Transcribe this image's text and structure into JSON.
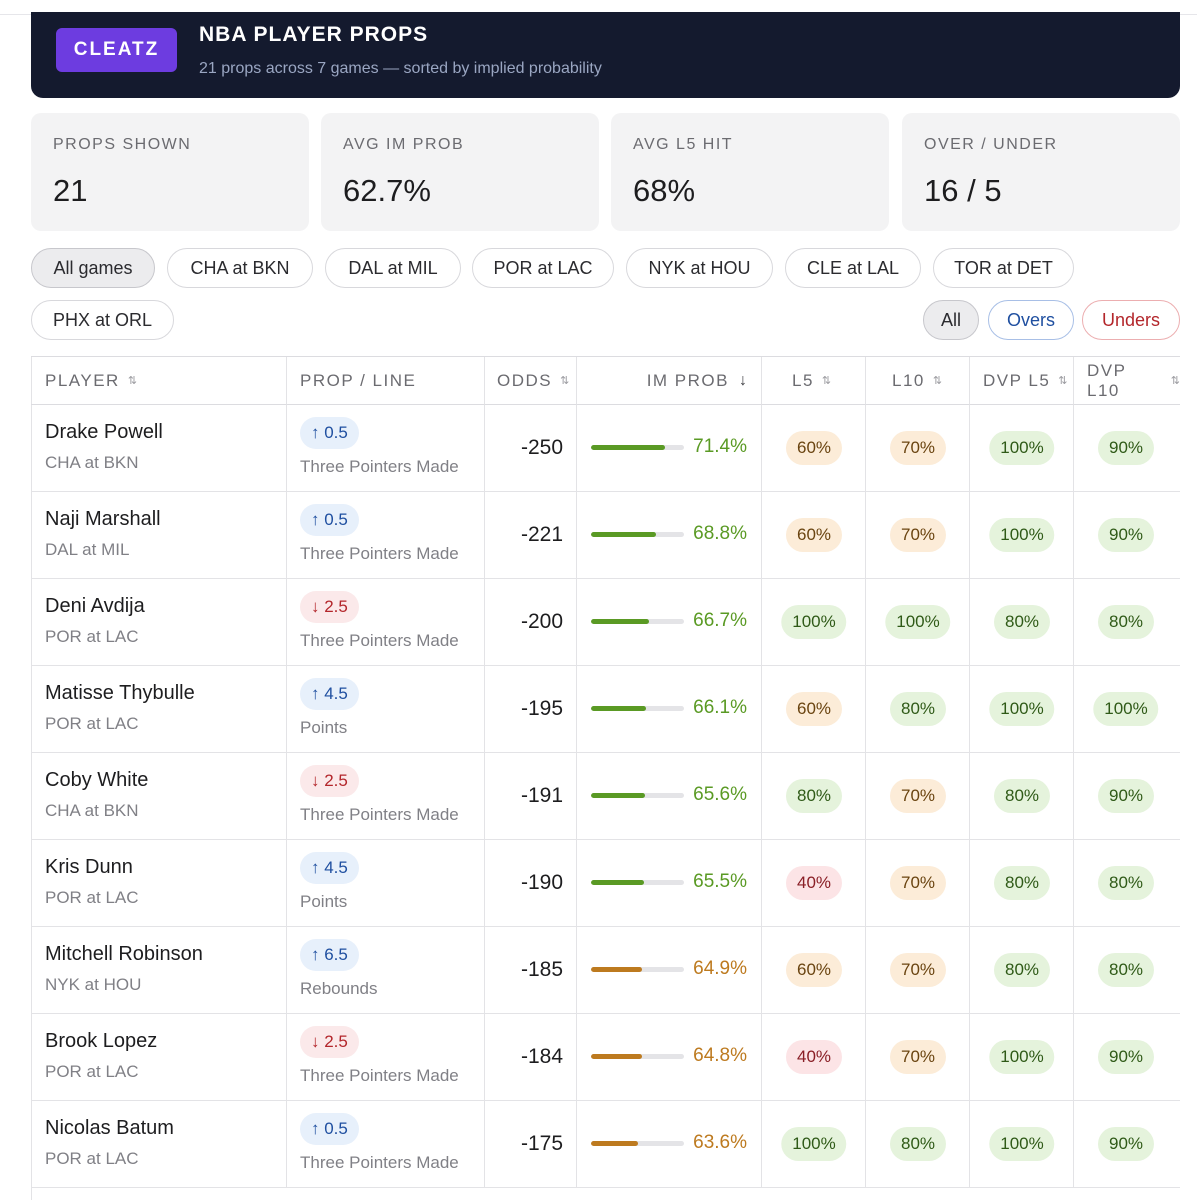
{
  "brand": "CLEATZ",
  "title": "NBA PLAYER PROPS",
  "subtitle": "21 props across 7 games — sorted by implied probability",
  "stats": [
    {
      "label": "PROPS SHOWN",
      "value": "21"
    },
    {
      "label": "AVG IM PROB",
      "value": "62.7%"
    },
    {
      "label": "AVG L5 HIT",
      "value": "68%"
    },
    {
      "label": "OVER / UNDER",
      "value": "16 / 5"
    }
  ],
  "game_filters": [
    "All games",
    "CHA at BKN",
    "DAL at MIL",
    "POR at LAC",
    "NYK at HOU",
    "CLE at LAL",
    "TOR at DET",
    "PHX at ORL"
  ],
  "active_game": "All games",
  "direction_filters": {
    "all": "All",
    "overs": "Overs",
    "unders": "Unders"
  },
  "columns": {
    "player": "PLAYER",
    "prop": "PROP / LINE",
    "odds": "ODDS",
    "im_prob": "IM PROB",
    "l5": "L5",
    "l10": "L10",
    "dvp_l5": "DVP L5",
    "dvp_l10": "DVP L10",
    "sort_icon": "⇅",
    "sort_active_icon": "↓"
  },
  "colors": {
    "green": "#5a9a24",
    "amber": "#bd7a1f",
    "over": "#1f4fa0",
    "under": "#b3262b"
  },
  "rows": [
    {
      "player": "Drake Powell",
      "game": "CHA at BKN",
      "badge": "↑ 0.5",
      "direction": "over",
      "prop": "Three Pointers Made",
      "odds": "-250",
      "prob": "71.4%",
      "prob_value": 71.4,
      "l5": "60%",
      "l10": "70%",
      "dvp_l5": "100%",
      "dvp_l10": "90%"
    },
    {
      "player": "Naji Marshall",
      "game": "DAL at MIL",
      "badge": "↑ 0.5",
      "direction": "over",
      "prop": "Three Pointers Made",
      "odds": "-221",
      "prob": "68.8%",
      "prob_value": 68.8,
      "l5": "60%",
      "l10": "70%",
      "dvp_l5": "100%",
      "dvp_l10": "90%"
    },
    {
      "player": "Deni Avdija",
      "game": "POR at LAC",
      "badge": "↓ 2.5",
      "direction": "under",
      "prop": "Three Pointers Made",
      "odds": "-200",
      "prob": "66.7%",
      "prob_value": 66.7,
      "l5": "100%",
      "l10": "100%",
      "dvp_l5": "80%",
      "dvp_l10": "80%"
    },
    {
      "player": "Matisse Thybulle",
      "game": "POR at LAC",
      "badge": "↑ 4.5",
      "direction": "over",
      "prop": "Points",
      "odds": "-195",
      "prob": "66.1%",
      "prob_value": 66.1,
      "l5": "60%",
      "l10": "80%",
      "dvp_l5": "100%",
      "dvp_l10": "100%"
    },
    {
      "player": "Coby White",
      "game": "CHA at BKN",
      "badge": "↓ 2.5",
      "direction": "under",
      "prop": "Three Pointers Made",
      "odds": "-191",
      "prob": "65.6%",
      "prob_value": 65.6,
      "l5": "80%",
      "l10": "70%",
      "dvp_l5": "80%",
      "dvp_l10": "90%"
    },
    {
      "player": "Kris Dunn",
      "game": "POR at LAC",
      "badge": "↑ 4.5",
      "direction": "over",
      "prop": "Points",
      "odds": "-190",
      "prob": "65.5%",
      "prob_value": 65.5,
      "l5": "40%",
      "l10": "70%",
      "dvp_l5": "80%",
      "dvp_l10": "80%"
    },
    {
      "player": "Mitchell Robinson",
      "game": "NYK at HOU",
      "badge": "↑ 6.5",
      "direction": "over",
      "prop": "Rebounds",
      "odds": "-185",
      "prob": "64.9%",
      "prob_value": 64.9,
      "l5": "60%",
      "l10": "70%",
      "dvp_l5": "80%",
      "dvp_l10": "80%"
    },
    {
      "player": "Brook Lopez",
      "game": "POR at LAC",
      "badge": "↓ 2.5",
      "direction": "under",
      "prop": "Three Pointers Made",
      "odds": "-184",
      "prob": "64.8%",
      "prob_value": 64.8,
      "l5": "40%",
      "l10": "70%",
      "dvp_l5": "100%",
      "dvp_l10": "90%"
    },
    {
      "player": "Nicolas Batum",
      "game": "POR at LAC",
      "badge": "↑ 0.5",
      "direction": "over",
      "prop": "Three Pointers Made",
      "odds": "-175",
      "prob": "63.6%",
      "prob_value": 63.6,
      "l5": "100%",
      "l10": "80%",
      "dvp_l5": "100%",
      "dvp_l10": "90%"
    }
  ]
}
